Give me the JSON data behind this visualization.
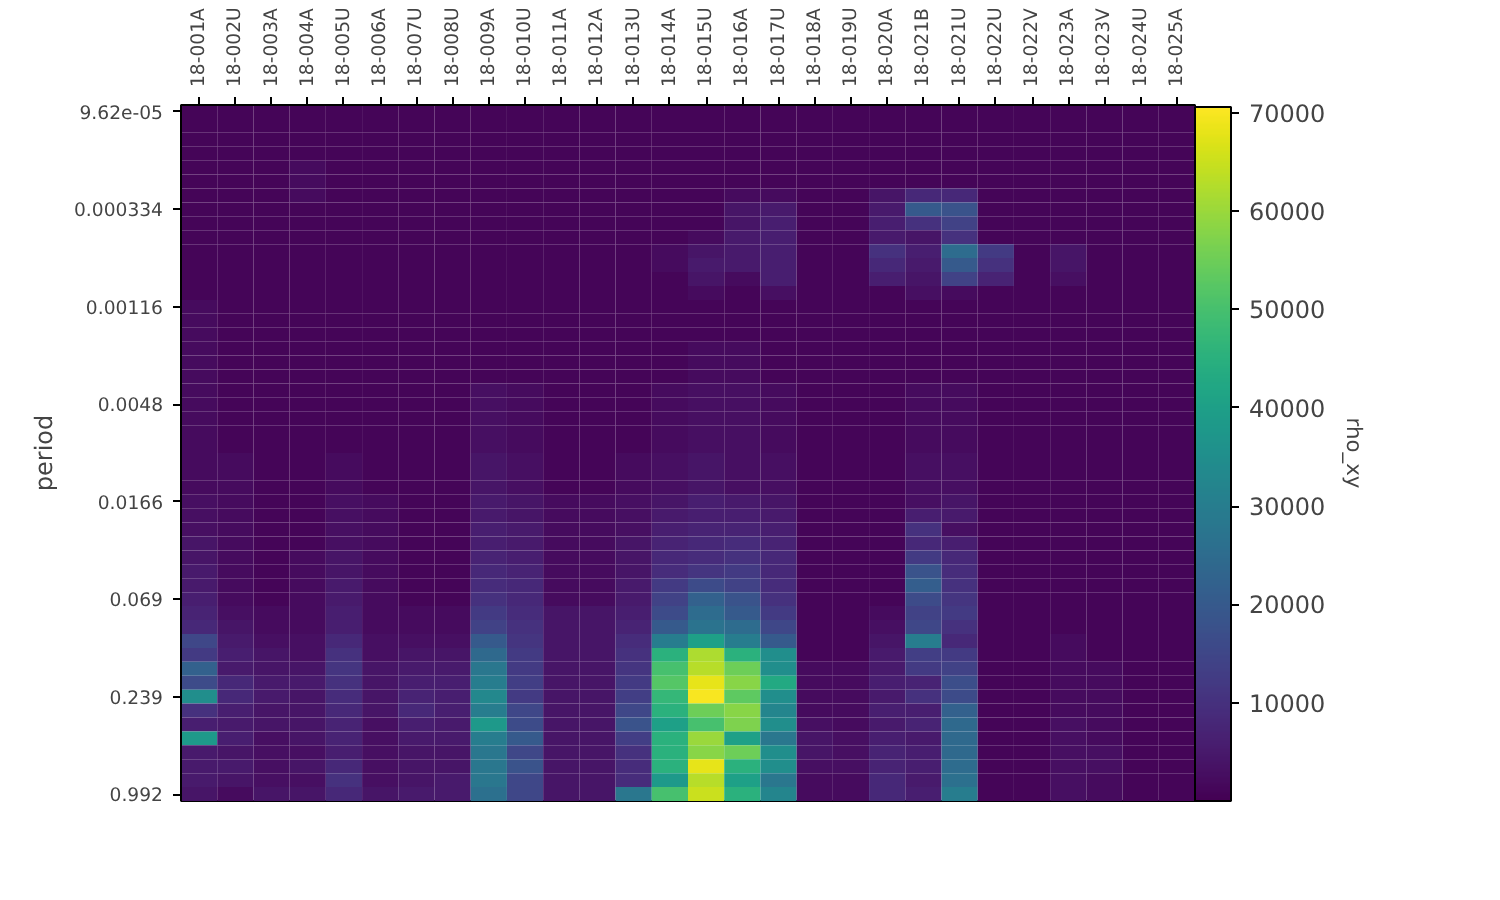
{
  "chart_data": {
    "type": "heatmap",
    "ylabel": "period",
    "clabel": "rho_xy",
    "categories": [
      "18-001A",
      "18-002U",
      "18-003A",
      "18-004A",
      "18-005U",
      "18-006A",
      "18-007U",
      "18-008U",
      "18-009A",
      "18-010U",
      "18-011A",
      "18-012A",
      "18-013U",
      "18-014A",
      "18-015U",
      "18-016A",
      "18-017U",
      "18-018A",
      "18-019U",
      "18-020A",
      "18-021B",
      "18-021U",
      "18-022U",
      "18-022V",
      "18-023A",
      "18-023V",
      "18-024U",
      "18-025A"
    ],
    "y_categories": [
      "9.62e-05",
      null,
      null,
      null,
      null,
      null,
      null,
      "0.000334",
      null,
      null,
      null,
      null,
      null,
      null,
      "0.00116",
      null,
      null,
      null,
      null,
      null,
      null,
      "0.0048",
      null,
      null,
      null,
      null,
      null,
      null,
      "0.0166",
      null,
      null,
      null,
      null,
      null,
      null,
      "0.069",
      null,
      null,
      null,
      null,
      null,
      null,
      "0.239",
      null,
      null,
      null,
      null,
      null,
      null,
      "0.992"
    ],
    "clim": [
      0,
      70600
    ],
    "cticks": [
      10000,
      20000,
      30000,
      40000,
      50000,
      60000,
      70000
    ],
    "cells": [
      [
        1000,
        1000,
        1000,
        1000,
        1000,
        1000,
        1000,
        1000,
        1000,
        1000,
        1000,
        1000,
        1000,
        1000,
        1000,
        1000,
        1000,
        1000,
        1000,
        1000,
        1000,
        1000,
        1000,
        1000,
        1000,
        1000,
        1000,
        1000
      ],
      [
        1000,
        1000,
        1000,
        1000,
        1000,
        1000,
        1000,
        1000,
        1000,
        1000,
        1000,
        1000,
        1000,
        1000,
        1000,
        1000,
        1000,
        1000,
        1000,
        1000,
        1000,
        1000,
        1000,
        1000,
        1000,
        1000,
        1000,
        1000
      ],
      [
        1000,
        1000,
        1000,
        1000,
        1000,
        1000,
        1000,
        1000,
        1000,
        1000,
        1000,
        1000,
        1000,
        1000,
        1000,
        1000,
        1000,
        1000,
        1000,
        1000,
        1000,
        1000,
        1000,
        1000,
        1000,
        1000,
        1000,
        1000
      ],
      [
        1000,
        1000,
        1000,
        1000,
        1000,
        1000,
        1000,
        1000,
        1000,
        1000,
        1000,
        1000,
        1000,
        1000,
        1000,
        1000,
        1000,
        1000,
        1000,
        1000,
        1000,
        1000,
        1000,
        1000,
        1000,
        1000,
        1000,
        1000
      ],
      [
        1000,
        1000,
        1000,
        2000,
        1000,
        1000,
        1000,
        1000,
        1000,
        1000,
        1000,
        1000,
        1000,
        1000,
        1000,
        1000,
        1000,
        1000,
        1000,
        1000,
        1000,
        1000,
        1000,
        1000,
        1000,
        1000,
        1000,
        1000
      ],
      [
        1000,
        1000,
        1000,
        2000,
        1000,
        1000,
        1000,
        1000,
        1000,
        1000,
        1000,
        1000,
        1000,
        1000,
        1000,
        1000,
        1000,
        1000,
        1000,
        1000,
        1000,
        1000,
        1000,
        1000,
        1000,
        1000,
        1000,
        1000
      ],
      [
        1000,
        1000,
        1000,
        2000,
        1000,
        1000,
        1000,
        1000,
        1000,
        1000,
        1000,
        1000,
        1000,
        1000,
        1000,
        2000,
        2000,
        1000,
        1000,
        4000,
        8000,
        8000,
        1000,
        1000,
        1000,
        1000,
        1000,
        1000
      ],
      [
        1000,
        1000,
        1000,
        1000,
        1000,
        1000,
        1000,
        1000,
        1000,
        1000,
        1000,
        1000,
        1000,
        1000,
        1000,
        4000,
        5000,
        1000,
        1000,
        5000,
        20000,
        18000,
        1000,
        1000,
        1000,
        1000,
        1000,
        1000
      ],
      [
        1000,
        1000,
        1000,
        1000,
        1000,
        1000,
        1000,
        1000,
        1000,
        1000,
        1000,
        1000,
        1000,
        1000,
        1000,
        4000,
        6000,
        1000,
        1000,
        6000,
        10000,
        14000,
        1000,
        1000,
        1000,
        1000,
        1000,
        1000
      ],
      [
        1000,
        1000,
        1000,
        1000,
        1000,
        1000,
        1000,
        1000,
        1000,
        1000,
        1000,
        1000,
        1000,
        1000,
        2000,
        5000,
        6000,
        1000,
        1000,
        5000,
        4000,
        10000,
        1000,
        1000,
        1000,
        1000,
        1000,
        1000
      ],
      [
        1000,
        1000,
        1000,
        1000,
        1000,
        1000,
        1000,
        1000,
        1000,
        1000,
        1000,
        1000,
        1000,
        2000,
        4000,
        5000,
        6000,
        1000,
        1000,
        10000,
        6000,
        25000,
        12000,
        1000,
        4000,
        1000,
        1000,
        1000
      ],
      [
        1000,
        1000,
        1000,
        1000,
        1000,
        1000,
        1000,
        1000,
        1000,
        1000,
        1000,
        1000,
        1000,
        2000,
        5000,
        5000,
        6000,
        1000,
        1000,
        8000,
        5000,
        20000,
        10000,
        1000,
        4000,
        1000,
        1000,
        1000
      ],
      [
        1000,
        1000,
        1000,
        1000,
        1000,
        1000,
        1000,
        1000,
        1000,
        1000,
        1000,
        1000,
        1000,
        1000,
        4000,
        2000,
        6000,
        1000,
        1000,
        6000,
        4000,
        14000,
        7000,
        1000,
        3000,
        1000,
        1000,
        1000
      ],
      [
        1000,
        1000,
        1000,
        1000,
        1000,
        1000,
        1000,
        1000,
        1000,
        1000,
        1000,
        1000,
        1000,
        1000,
        2000,
        1000,
        3000,
        1000,
        1000,
        1000,
        3000,
        2000,
        1000,
        1000,
        1000,
        1000,
        1000,
        1000
      ],
      [
        2000,
        1000,
        1000,
        1000,
        1000,
        1000,
        1000,
        1000,
        1000,
        1000,
        1000,
        1000,
        1000,
        1000,
        1000,
        1000,
        1000,
        1000,
        1000,
        1000,
        1000,
        1000,
        1000,
        1000,
        1000,
        1000,
        1000,
        1000
      ],
      [
        2000,
        1000,
        1000,
        1000,
        1000,
        1000,
        1000,
        1000,
        1000,
        1000,
        1000,
        1000,
        1000,
        1000,
        1000,
        1000,
        1000,
        1000,
        1000,
        1000,
        1000,
        1000,
        1000,
        1000,
        1000,
        1000,
        1000,
        1000
      ],
      [
        2000,
        1000,
        1000,
        1000,
        1000,
        1000,
        1000,
        1000,
        1000,
        1000,
        1000,
        1000,
        1000,
        1000,
        1000,
        1000,
        1000,
        1000,
        1000,
        1000,
        1000,
        1000,
        1000,
        1000,
        1000,
        1000,
        1000,
        1000
      ],
      [
        2000,
        1000,
        1000,
        1000,
        1000,
        1000,
        1000,
        1000,
        1000,
        1000,
        1000,
        1000,
        1000,
        1000,
        2000,
        2000,
        1000,
        1000,
        1000,
        1000,
        1000,
        1000,
        1000,
        1000,
        1000,
        1000,
        1000,
        1000
      ],
      [
        2000,
        1000,
        1000,
        1000,
        1000,
        1000,
        1000,
        1000,
        1000,
        1000,
        1000,
        1000,
        1000,
        1000,
        2000,
        2000,
        1000,
        1000,
        1000,
        1000,
        1000,
        1000,
        1000,
        1000,
        1000,
        1000,
        1000,
        1000
      ],
      [
        2000,
        1000,
        1000,
        1000,
        1000,
        1000,
        1000,
        1000,
        1000,
        1000,
        1000,
        1000,
        1000,
        1000,
        2000,
        2000,
        1000,
        1000,
        1000,
        1000,
        1000,
        1000,
        1000,
        1000,
        1000,
        1000,
        1000,
        1000
      ],
      [
        2000,
        1000,
        1000,
        1000,
        1000,
        1000,
        1000,
        1000,
        3000,
        2000,
        1000,
        1000,
        1000,
        2000,
        3000,
        3000,
        2000,
        1000,
        1000,
        1000,
        2000,
        2000,
        1000,
        1000,
        1000,
        1000,
        1000,
        1000
      ],
      [
        2000,
        1000,
        1000,
        1000,
        1000,
        1000,
        1000,
        1000,
        3000,
        2000,
        1000,
        1000,
        1000,
        2000,
        3000,
        3000,
        2000,
        1000,
        1000,
        1000,
        2000,
        2000,
        1000,
        1000,
        1000,
        1000,
        1000,
        1000
      ],
      [
        2000,
        1000,
        1000,
        1000,
        1000,
        1000,
        1000,
        1000,
        3000,
        2000,
        1000,
        1000,
        1000,
        2000,
        3000,
        3000,
        2000,
        1000,
        1000,
        1000,
        2000,
        2000,
        1000,
        1000,
        1000,
        1000,
        1000,
        1000
      ],
      [
        2000,
        1000,
        1000,
        1000,
        1000,
        1000,
        1000,
        1000,
        3000,
        2000,
        1000,
        1000,
        1000,
        2000,
        3000,
        3000,
        2000,
        1000,
        1000,
        1000,
        2000,
        2000,
        1000,
        1000,
        1000,
        1000,
        1000,
        1000
      ],
      [
        2000,
        1000,
        1000,
        1000,
        1000,
        1000,
        1000,
        1000,
        3000,
        2000,
        1000,
        1000,
        1000,
        2000,
        3000,
        3000,
        2000,
        1000,
        1000,
        1000,
        2000,
        2000,
        1000,
        1000,
        1000,
        1000,
        1000,
        1000
      ],
      [
        2000,
        2000,
        1000,
        1000,
        2000,
        1000,
        1000,
        1000,
        4000,
        3000,
        1000,
        1000,
        2000,
        3000,
        4000,
        3000,
        3000,
        1000,
        1000,
        1000,
        3000,
        3000,
        1000,
        1000,
        1000,
        1000,
        1000,
        1000
      ],
      [
        2000,
        2000,
        1000,
        1000,
        2000,
        1000,
        1000,
        1000,
        4000,
        3000,
        1000,
        1000,
        2000,
        3000,
        4000,
        3000,
        3000,
        1000,
        1000,
        1000,
        3000,
        3000,
        1000,
        1000,
        1000,
        1000,
        1000,
        1000
      ],
      [
        2000,
        2000,
        1000,
        1000,
        2000,
        1000,
        1000,
        1000,
        4000,
        3000,
        1000,
        1000,
        2000,
        3000,
        4000,
        3000,
        3000,
        1000,
        1000,
        1000,
        3000,
        3000,
        1000,
        1000,
        1000,
        1000,
        1000,
        1000
      ],
      [
        3000,
        2000,
        1000,
        1000,
        3000,
        2000,
        1000,
        1000,
        5000,
        4000,
        2000,
        2000,
        3000,
        4000,
        6000,
        5000,
        4000,
        1000,
        1000,
        1000,
        3000,
        4000,
        1000,
        1000,
        1000,
        1000,
        1000,
        1000
      ],
      [
        3000,
        2000,
        1000,
        1000,
        3000,
        2000,
        1000,
        1000,
        5000,
        4000,
        2000,
        2000,
        3000,
        5000,
        6000,
        6000,
        5000,
        1000,
        1000,
        1000,
        6000,
        5000,
        1000,
        1000,
        1000,
        1000,
        1000,
        1000
      ],
      [
        3000,
        2000,
        1000,
        1000,
        3000,
        2000,
        1000,
        1000,
        6000,
        5000,
        2000,
        2000,
        3000,
        6000,
        7000,
        7000,
        6000,
        1000,
        1000,
        1000,
        10000,
        3000,
        1000,
        1000,
        1000,
        1000,
        1000,
        1000
      ],
      [
        4000,
        2000,
        1000,
        1000,
        3000,
        2000,
        1000,
        1000,
        6000,
        5000,
        2000,
        2000,
        4000,
        7000,
        8000,
        9000,
        7000,
        1000,
        1000,
        1000,
        8000,
        6000,
        1000,
        1000,
        1000,
        1000,
        1000,
        1000
      ],
      [
        4000,
        2000,
        1000,
        2000,
        4000,
        2000,
        1000,
        1000,
        7000,
        6000,
        2000,
        2000,
        4000,
        8000,
        9000,
        10000,
        8000,
        1000,
        1000,
        1000,
        12000,
        8000,
        1000,
        1000,
        1000,
        1000,
        1000,
        1000
      ],
      [
        5000,
        2000,
        1000,
        2000,
        4000,
        2000,
        1000,
        1000,
        8000,
        7000,
        2000,
        2000,
        4000,
        9000,
        11000,
        12000,
        8000,
        1000,
        1000,
        1000,
        18000,
        9000,
        1000,
        1000,
        1000,
        1000,
        1000,
        1000
      ],
      [
        5000,
        2000,
        1000,
        2000,
        5000,
        2000,
        1000,
        1000,
        9000,
        8000,
        2000,
        2000,
        5000,
        12000,
        16000,
        14000,
        9000,
        1000,
        1000,
        1000,
        21000,
        10000,
        1000,
        1000,
        1000,
        1000,
        1000,
        1000
      ],
      [
        6000,
        2000,
        1000,
        2000,
        5000,
        2000,
        1000,
        1000,
        10000,
        8000,
        2000,
        2000,
        5000,
        14000,
        22000,
        18000,
        10000,
        1000,
        1000,
        1000,
        16000,
        11000,
        1000,
        1000,
        1000,
        1000,
        1000,
        1000
      ],
      [
        7000,
        3000,
        2000,
        2000,
        6000,
        2000,
        2000,
        2000,
        12000,
        9000,
        4000,
        4000,
        6000,
        16000,
        25000,
        20000,
        12000,
        1000,
        1000,
        2000,
        14000,
        12000,
        1000,
        1000,
        1000,
        1000,
        1000,
        1000
      ],
      [
        8000,
        4000,
        2000,
        2000,
        6000,
        2000,
        2000,
        2000,
        14000,
        10000,
        4000,
        4000,
        7000,
        20000,
        27000,
        25000,
        15000,
        1000,
        1000,
        3000,
        15000,
        10000,
        1000,
        1000,
        1000,
        1000,
        1000,
        1000
      ],
      [
        15000,
        5000,
        3000,
        3000,
        8000,
        3000,
        3000,
        3000,
        20000,
        11000,
        4000,
        4000,
        9000,
        30000,
        40000,
        30000,
        20000,
        1000,
        1000,
        4000,
        30000,
        8000,
        1000,
        1000,
        2000,
        1000,
        1000,
        1000
      ],
      [
        12000,
        6000,
        4000,
        3000,
        10000,
        3000,
        4000,
        4000,
        24000,
        12000,
        4000,
        4000,
        10000,
        45000,
        62000,
        45000,
        35000,
        1000,
        1000,
        5000,
        13000,
        12000,
        1000,
        1000,
        2000,
        1000,
        1000,
        1000
      ],
      [
        22000,
        5000,
        4000,
        4000,
        11000,
        4000,
        5000,
        5000,
        28000,
        12000,
        4000,
        4000,
        11000,
        50000,
        63000,
        55000,
        35000,
        2000,
        2000,
        5000,
        12000,
        14000,
        1000,
        1000,
        2000,
        2000,
        1000,
        1000
      ],
      [
        16000,
        8000,
        5000,
        5000,
        10000,
        4000,
        6000,
        6000,
        30000,
        13000,
        4000,
        4000,
        12000,
        52000,
        68000,
        58000,
        43000,
        2000,
        2000,
        6000,
        7000,
        17000,
        1000,
        1000,
        2000,
        2000,
        1000,
        1000
      ],
      [
        35000,
        8000,
        5000,
        4000,
        9000,
        4000,
        7000,
        6000,
        33000,
        12000,
        4000,
        4000,
        13000,
        47000,
        70000,
        53000,
        35000,
        2000,
        2000,
        5000,
        10000,
        16000,
        1000,
        1000,
        2000,
        2000,
        1000,
        1000
      ],
      [
        10000,
        6000,
        4000,
        4000,
        8000,
        4000,
        8000,
        6000,
        30000,
        15000,
        4000,
        4000,
        15000,
        45000,
        55000,
        58000,
        32000,
        2000,
        2000,
        6000,
        6000,
        22000,
        1000,
        1000,
        2000,
        2000,
        1000,
        1000
      ],
      [
        6000,
        5000,
        4000,
        4000,
        7000,
        3000,
        6000,
        5000,
        38000,
        16000,
        4000,
        4000,
        18000,
        40000,
        50000,
        57000,
        35000,
        3000,
        2000,
        5000,
        7000,
        24000,
        1000,
        1000,
        3000,
        2000,
        1000,
        1000
      ],
      [
        38000,
        6000,
        3000,
        4000,
        7000,
        3000,
        5000,
        5000,
        30000,
        20000,
        4000,
        4000,
        13000,
        45000,
        60000,
        40000,
        28000,
        4000,
        3000,
        6000,
        5000,
        24000,
        1000,
        1000,
        3000,
        2000,
        1000,
        1000
      ],
      [
        5000,
        4000,
        3000,
        3000,
        6000,
        3000,
        4000,
        4000,
        28000,
        15000,
        4000,
        4000,
        10000,
        45000,
        58000,
        55000,
        35000,
        4000,
        3000,
        7000,
        6000,
        24000,
        1000,
        1000,
        3000,
        3000,
        1000,
        1000
      ],
      [
        5000,
        5000,
        3000,
        4000,
        8000,
        3000,
        4000,
        4000,
        28000,
        18000,
        4000,
        4000,
        9000,
        45000,
        68000,
        45000,
        35000,
        3000,
        3000,
        7000,
        6000,
        25000,
        1000,
        1000,
        3000,
        3000,
        1000,
        1000
      ],
      [
        5000,
        4000,
        3000,
        3000,
        10000,
        3000,
        4000,
        5000,
        28000,
        15000,
        4000,
        4000,
        9000,
        38000,
        63000,
        40000,
        28000,
        2000,
        2000,
        8000,
        5000,
        26000,
        1000,
        1000,
        3000,
        2000,
        1000,
        1000
      ],
      [
        4000,
        2000,
        4000,
        4000,
        8000,
        4000,
        5000,
        5000,
        26000,
        15000,
        4000,
        4000,
        28000,
        50000,
        65000,
        45000,
        32000,
        2000,
        2000,
        8000,
        6000,
        30000,
        1000,
        1000,
        3000,
        2000,
        1000,
        1000
      ]
    ]
  }
}
